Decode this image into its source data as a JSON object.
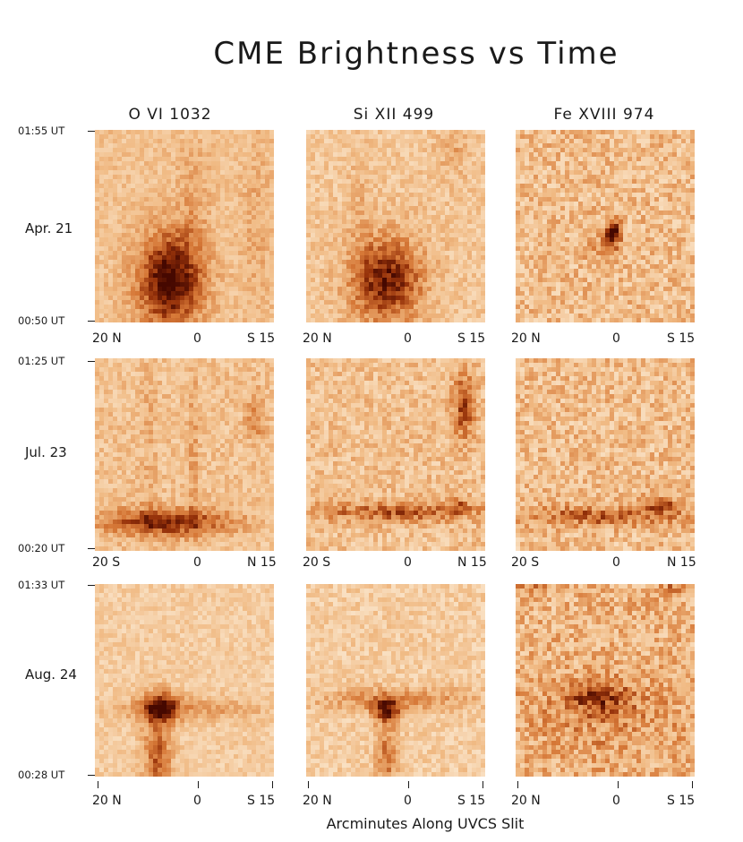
{
  "title": "CME Brightness vs Time",
  "columns": [
    "O VI 1032",
    "Si XII 499",
    "Fe XVIII 974"
  ],
  "x_axis_title": "Arcminutes Along UVCS Slit",
  "rows": [
    {
      "date": "Apr. 21",
      "time_top": "01:55 UT",
      "time_bottom": "00:50 UT",
      "x_ticks": [
        "20 N",
        "0",
        "S 15"
      ]
    },
    {
      "date": "Jul. 23",
      "time_top": "01:25 UT",
      "time_bottom": "00:20 UT",
      "x_ticks": [
        "20 S",
        "0",
        "N 15"
      ]
    },
    {
      "date": "Aug. 24",
      "time_top": "01:33 UT",
      "time_bottom": "00:28 UT",
      "x_ticks": [
        "20 N",
        "0",
        "S 15"
      ]
    }
  ],
  "colors": {
    "colormap_light": "#fbe9d3",
    "colormap_mid": "#e3955a",
    "colormap_dark": "#5a0f00"
  },
  "chart_data": {
    "type": "heatmap",
    "title": "CME Brightness vs Time",
    "xlabel": "Arcminutes Along UVCS Slit",
    "ylabel": "",
    "xlim": [
      20,
      -15
    ],
    "panels": [
      {
        "row": "Apr. 21",
        "line": "O VI 1032",
        "time_range": [
          "00:50 UT",
          "01:55 UT"
        ],
        "x_ticks": [
          "20 N",
          "0",
          "S 15"
        ]
      },
      {
        "row": "Apr. 21",
        "line": "Si XII 499",
        "time_range": [
          "00:50 UT",
          "01:55 UT"
        ],
        "x_ticks": [
          "20 N",
          "0",
          "S 15"
        ]
      },
      {
        "row": "Apr. 21",
        "line": "Fe XVIII 974",
        "time_range": [
          "00:50 UT",
          "01:55 UT"
        ],
        "x_ticks": [
          "20 N",
          "0",
          "S 15"
        ]
      },
      {
        "row": "Jul. 23",
        "line": "O VI 1032",
        "time_range": [
          "00:20 UT",
          "01:25 UT"
        ],
        "x_ticks": [
          "20 S",
          "0",
          "N 15"
        ]
      },
      {
        "row": "Jul. 23",
        "line": "Si XII 499",
        "time_range": [
          "00:20 UT",
          "01:25 UT"
        ],
        "x_ticks": [
          "20 S",
          "0",
          "N 15"
        ]
      },
      {
        "row": "Jul. 23",
        "line": "Fe XVIII 974",
        "time_range": [
          "00:20 UT",
          "01:25 UT"
        ],
        "x_ticks": [
          "20 S",
          "0",
          "N 15"
        ]
      },
      {
        "row": "Aug. 24",
        "line": "O VI 1032",
        "time_range": [
          "00:28 UT",
          "01:33 UT"
        ],
        "x_ticks": [
          "20 N",
          "0",
          "S 15"
        ]
      },
      {
        "row": "Aug. 24",
        "line": "Si XII 499",
        "time_range": [
          "00:28 UT",
          "01:33 UT"
        ],
        "x_ticks": [
          "20 N",
          "0",
          "S 15"
        ]
      },
      {
        "row": "Aug. 24",
        "line": "Fe XVIII 974",
        "time_range": [
          "00:28 UT",
          "01:33 UT"
        ],
        "x_ticks": [
          "20 N",
          "0",
          "S 15"
        ]
      }
    ]
  }
}
